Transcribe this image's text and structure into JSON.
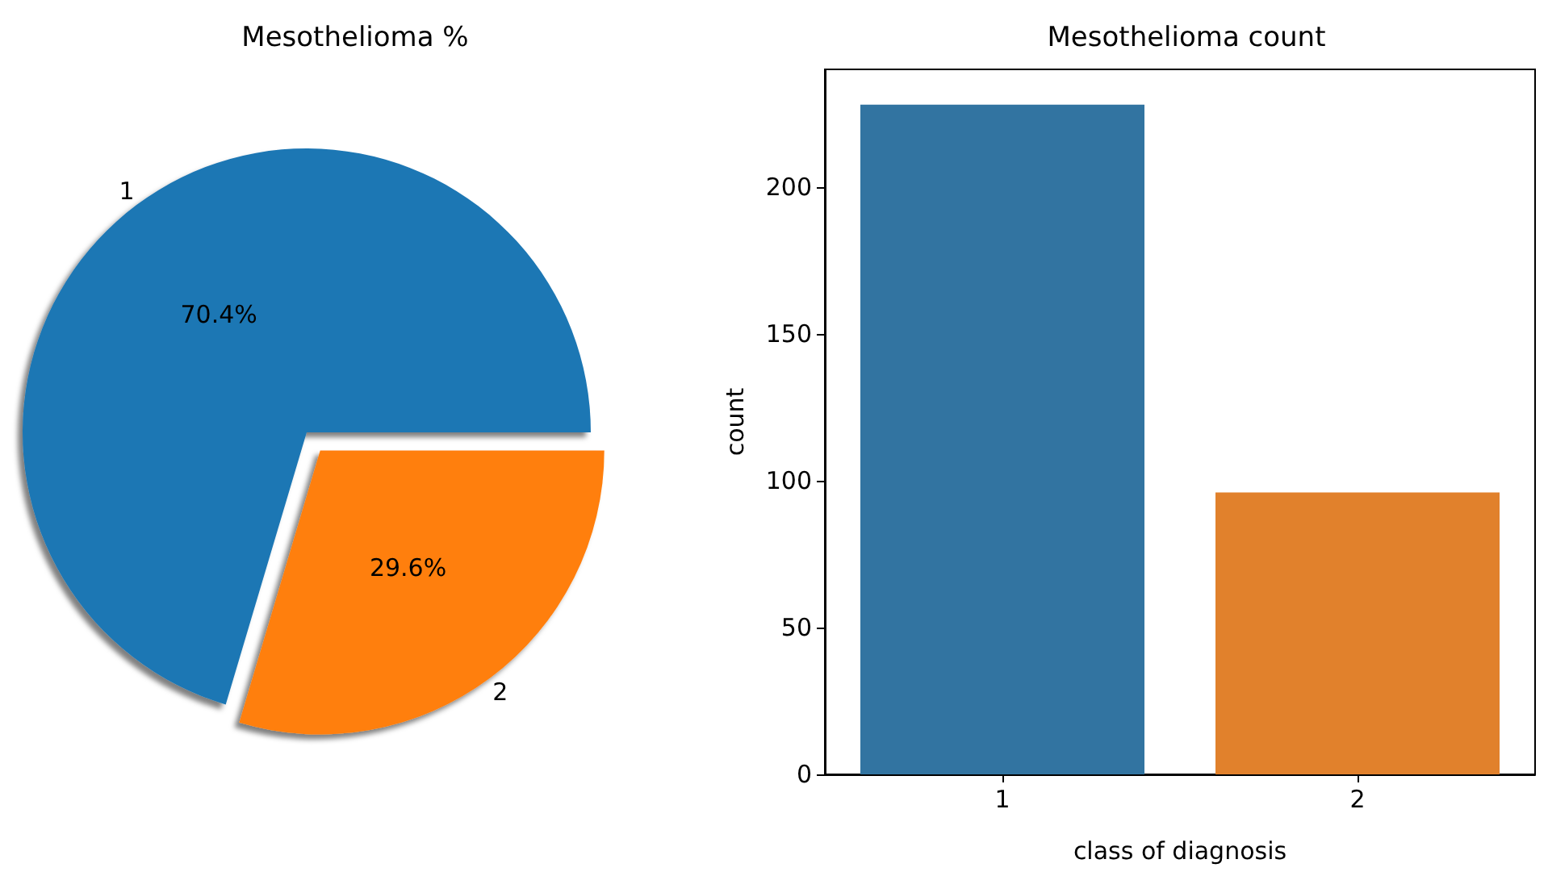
{
  "chart_data": [
    {
      "type": "pie",
      "title": "Mesothelioma %",
      "categories": [
        "1",
        "2"
      ],
      "values": [
        70.4,
        29.6
      ],
      "colors": [
        "#1f77b4",
        "#ff7f0e"
      ],
      "value_labels": [
        "70.4%",
        "29.6%"
      ]
    },
    {
      "type": "bar",
      "title": "Mesothelioma count",
      "categories": [
        "1",
        "2"
      ],
      "values": [
        228,
        96
      ],
      "colors": [
        "#3274a1",
        "#e1812c"
      ],
      "xlabel": "class of diagnosis",
      "ylabel": "count",
      "ylim": [
        0,
        240
      ],
      "yticks": [
        0,
        50,
        100,
        150,
        200
      ],
      "grid": false
    }
  ]
}
